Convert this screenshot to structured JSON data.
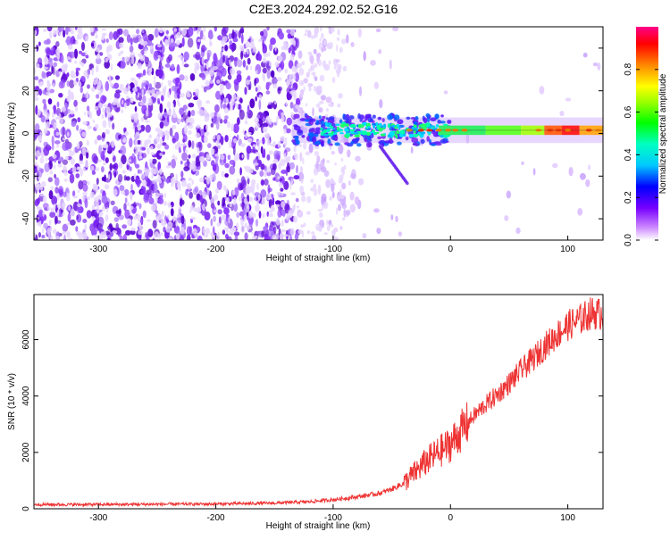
{
  "title": "C2E3.2024.292.02.52.G16",
  "chart_data": [
    {
      "type": "heatmap",
      "xlabel": "Height of straight line (km)",
      "ylabel": "Frequency (Hz)",
      "xlim": [
        -355,
        130
      ],
      "ylim": [
        -50,
        50
      ],
      "xticks": [
        -300,
        -200,
        -100,
        0,
        100
      ],
      "yticks": [
        -40,
        -20,
        0,
        20,
        40
      ],
      "colorbar": {
        "label": "Normalized spectral amplitude",
        "range": [
          0,
          1
        ],
        "ticks": [
          "0.0",
          "0.2",
          "0.4",
          "0.6",
          "0.8"
        ],
        "tick_values": [
          0,
          0.2,
          0.4,
          0.6,
          0.8
        ]
      },
      "signal": {
        "center_frequency_hz": 1.5,
        "strong_from_km": -40,
        "peak_near_km": 90
      },
      "noise_edge_km": -130
    },
    {
      "type": "line",
      "xlabel": "Height of straight line (km)",
      "ylabel": "SNR (10 * v/v)",
      "xlim": [
        -355,
        130
      ],
      "ylim": [
        0,
        7600
      ],
      "xticks": [
        -300,
        -200,
        -100,
        0,
        100
      ],
      "yticks": [
        0,
        2000,
        4000,
        6000
      ],
      "series": [
        {
          "color": "#ee3333",
          "x": [
            -355,
            -300,
            -250,
            -200,
            -150,
            -120,
            -100,
            -80,
            -60,
            -50,
            -40,
            -30,
            -20,
            -10,
            0,
            10,
            20,
            30,
            40,
            50,
            60,
            70,
            80,
            90,
            100,
            110,
            120,
            130
          ],
          "y": [
            150,
            150,
            160,
            170,
            200,
            250,
            320,
            420,
            550,
            700,
            900,
            1300,
            1700,
            2000,
            2300,
            2800,
            3300,
            3700,
            4050,
            4450,
            4900,
            5300,
            5750,
            6150,
            6500,
            6700,
            6950,
            6900
          ]
        }
      ]
    }
  ]
}
